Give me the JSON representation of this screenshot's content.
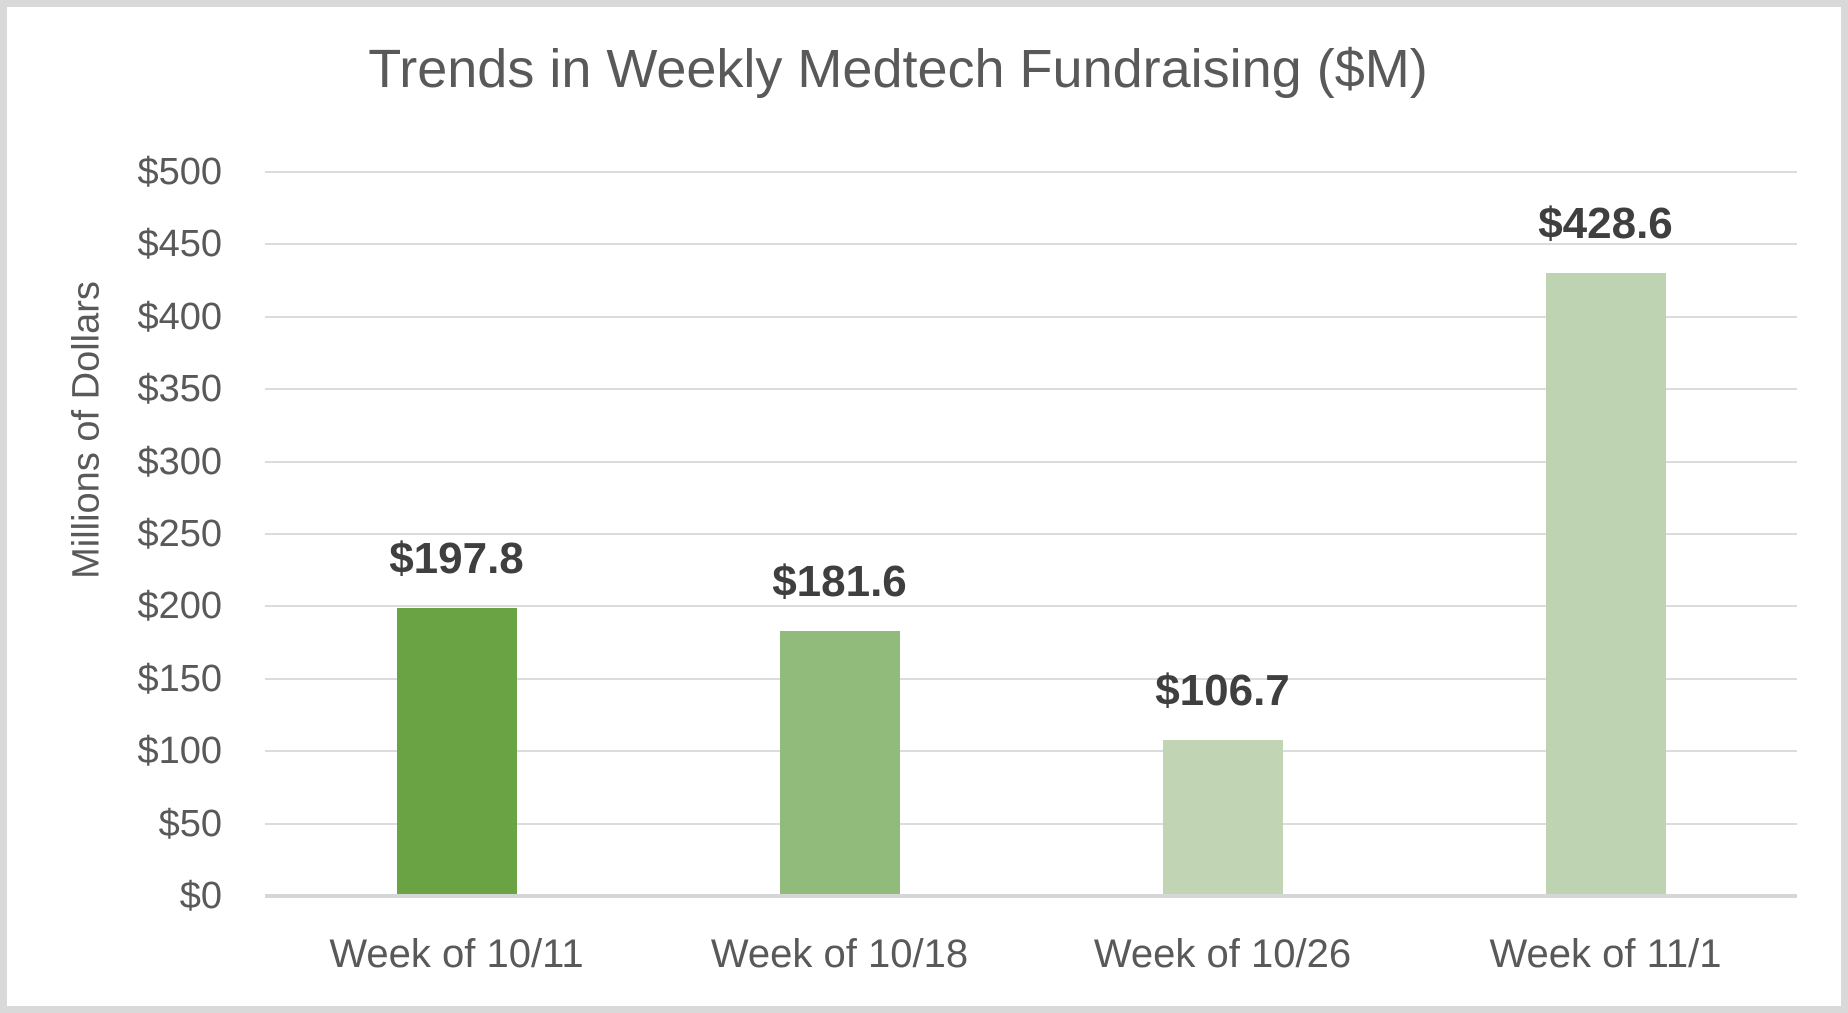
{
  "chart_data": {
    "type": "bar",
    "title": "Trends in Weekly Medtech Fundraising ($M)",
    "ylabel": "Millions of Dollars",
    "xlabel": "",
    "categories": [
      "Week of 10/11",
      "Week of 10/18",
      "Week of 10/26",
      "Week of 11/1"
    ],
    "values": [
      197.8,
      181.6,
      106.7,
      428.6
    ],
    "value_labels": [
      "$197.8",
      "$181.6",
      "$106.7",
      "$428.6"
    ],
    "bar_colors": [
      "#6aa343",
      "#90bb7b",
      "#c1d5b5",
      "#bed3b2"
    ],
    "ylim": [
      0,
      500
    ],
    "ytick_step": 50,
    "ytick_labels": [
      "$0",
      "$50",
      "$100",
      "$150",
      "$200",
      "$250",
      "$300",
      "$350",
      "$400",
      "$450",
      "$500"
    ],
    "grid": "horizontal gridlines on",
    "legend": "none"
  },
  "colors": {
    "bar_week_10_11": "#6aa343",
    "bar_week_10_18": "#90bb7b",
    "bar_week_10_26": "#c1d5b5",
    "bar_week_11_1": "#bed3b2",
    "gridline": "#dcdcdc",
    "axis_line": "#d6d6d6",
    "title_text": "#595959",
    "tick_text": "#595959",
    "data_label_text": "#3f3f3f",
    "frame_border": "#d9d9d9",
    "background": "#ffffff"
  }
}
